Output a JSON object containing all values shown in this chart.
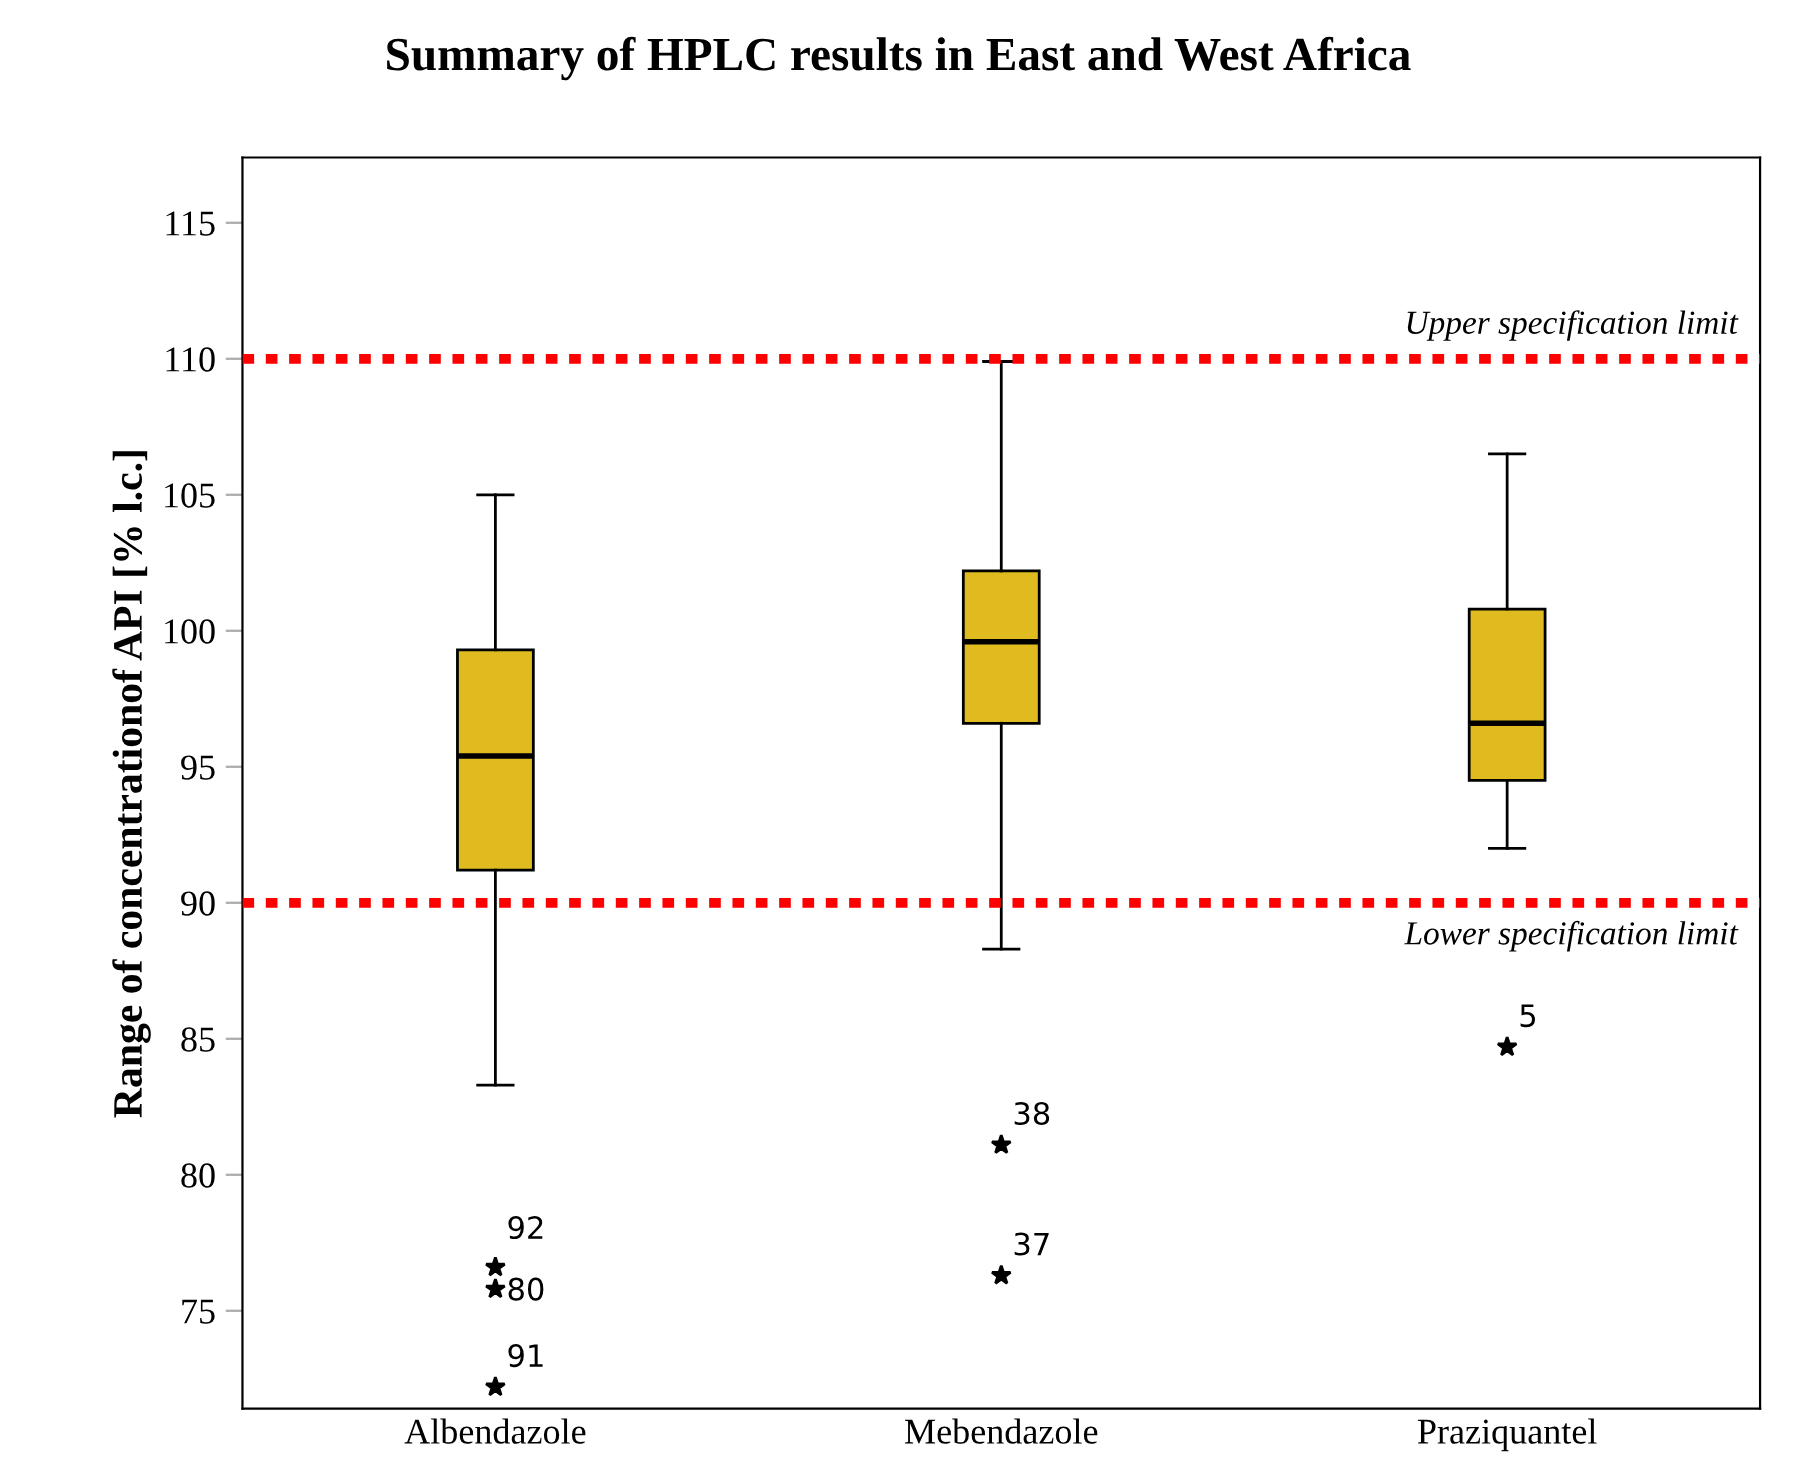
{
  "chart_data": {
    "type": "box",
    "title": "Summary of HPLC results in East and West Africa",
    "ylabel": "Range of concentrationof API [% l.c.]",
    "categories": [
      "Albendazole",
      "Mebendazole",
      "Praziquantel"
    ],
    "color": "#dfbb20",
    "marker": "star",
    "grid": false,
    "boxes": [
      {
        "low": 83.3,
        "q1": 91.2,
        "median": 95.4,
        "q3": 99.3,
        "high": 105,
        "outliers": [
          76.6,
          75.8,
          72.2
        ]
      },
      {
        "low": 88.3,
        "q1": 96.6,
        "median": 99.6,
        "q3": 102.2,
        "high": 109.9,
        "outliers": [
          81.1,
          76.3
        ]
      },
      {
        "low": 92.0,
        "q1": 94.5,
        "median": 96.6,
        "q3": 100.8,
        "high": 106.5,
        "outliers": [
          84.7
        ]
      }
    ],
    "ylim": [
      71.4,
      117.4
    ],
    "yticks": [
      75,
      80,
      85,
      90,
      95,
      100,
      105,
      110,
      115
    ],
    "ref_lines": [
      {
        "axis": "y",
        "value": 110,
        "label": "Upper specification limit",
        "color": "#ff0000",
        "line_style": "dotted"
      },
      {
        "axis": "y",
        "value": 90,
        "label": "Lower specification limit",
        "color": "#ff0000",
        "line_style": "dotted"
      }
    ],
    "annotations": [
      "92",
      "80",
      "91",
      "38",
      "37",
      "5"
    ]
  }
}
